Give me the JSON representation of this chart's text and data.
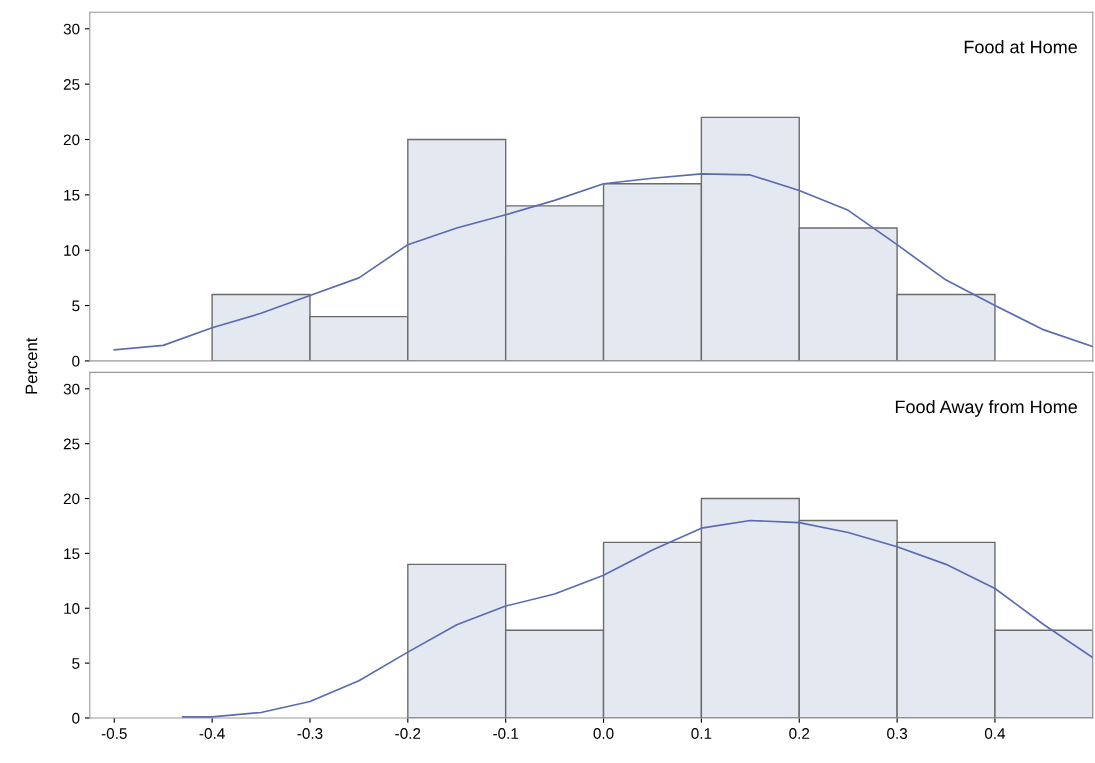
{
  "chart_data": [
    {
      "type": "histogram",
      "ylabel": "Percent",
      "annotations": [
        "Food at Home"
      ],
      "bins": [
        -0.4,
        -0.3,
        -0.2,
        -0.1,
        0.0,
        0.1,
        0.2,
        0.3,
        0.4
      ],
      "values": [
        6,
        4,
        20,
        14,
        16,
        22,
        12,
        6
      ],
      "color": "#e3e8f1",
      "series": [
        {
          "type": "line",
          "color": "#5a6bb0",
          "x": [
            -0.5,
            -0.45,
            -0.4,
            -0.35,
            -0.3,
            -0.25,
            -0.2,
            -0.15,
            -0.1,
            -0.05,
            0.0,
            0.05,
            0.1,
            0.15,
            0.2,
            0.25,
            0.3,
            0.35,
            0.4,
            0.45,
            0.5
          ],
          "values": [
            1.0,
            1.4,
            3.0,
            4.3,
            5.9,
            7.5,
            10.5,
            12.0,
            13.2,
            14.5,
            16.0,
            16.5,
            16.9,
            16.8,
            15.4,
            13.6,
            10.5,
            7.3,
            5.0,
            2.8,
            1.3
          ]
        }
      ],
      "xlim": [
        -0.525,
        0.5
      ],
      "ylim": [
        0,
        31.5
      ],
      "yticks": [
        0,
        5,
        10,
        15,
        20,
        25,
        30
      ],
      "tick_labels": "y",
      "grid": false,
      "legend": false
    },
    {
      "type": "histogram",
      "annotations": [
        "Food Away from Home"
      ],
      "bins": [
        -0.2,
        -0.1,
        0.0,
        0.1,
        0.2,
        0.3,
        0.4,
        0.5
      ],
      "values": [
        14,
        8,
        16,
        20,
        18,
        16,
        8
      ],
      "color": "#e3e8f1",
      "series": [
        {
          "type": "line",
          "color": "#5a6bb0",
          "x": [
            -0.43,
            -0.4,
            -0.35,
            -0.3,
            -0.25,
            -0.2,
            -0.15,
            -0.1,
            -0.05,
            0.0,
            0.05,
            0.1,
            0.15,
            0.2,
            0.25,
            0.3,
            0.35,
            0.4,
            0.45,
            0.5
          ],
          "values": [
            0.1,
            0.1,
            0.5,
            1.5,
            3.4,
            6.0,
            8.5,
            10.2,
            11.3,
            13.0,
            15.3,
            17.3,
            18.0,
            17.8,
            16.9,
            15.6,
            14.0,
            11.8,
            8.5,
            5.5
          ]
        }
      ],
      "xlim": [
        -0.525,
        0.5
      ],
      "xticks": [
        -0.5,
        -0.4,
        -0.3,
        -0.2,
        -0.1,
        {
          "value": 0.0,
          "label": "0.0"
        },
        0.1,
        0.2,
        0.3,
        0.4
      ],
      "ylim": [
        0,
        31.5
      ],
      "yticks": [
        0,
        5,
        10,
        15,
        20,
        25,
        30
      ],
      "grid": false,
      "legend": false
    }
  ]
}
